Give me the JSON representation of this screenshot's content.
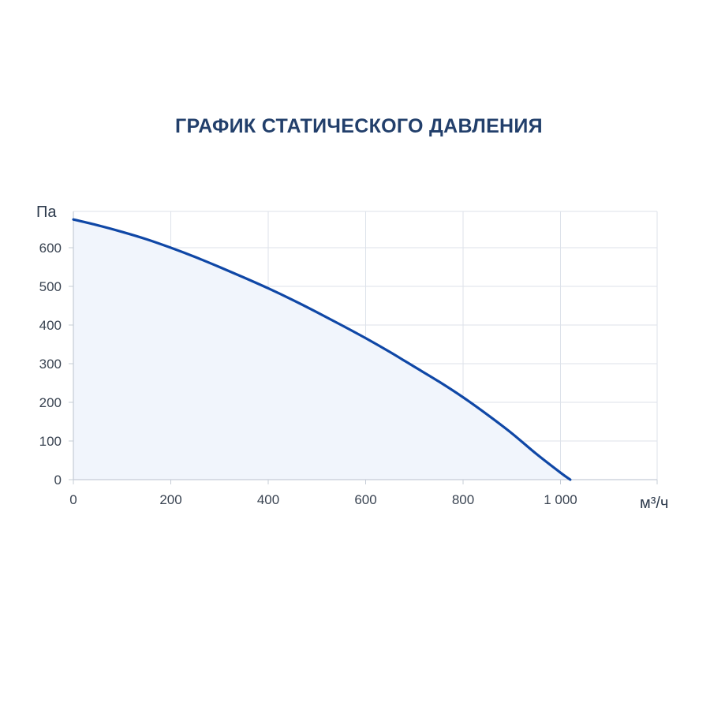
{
  "chart_data": {
    "type": "area",
    "title": "ГРАФИК СТАТИЧЕСКОГО ДАВЛЕНИЯ",
    "xlabel": "м³/ч",
    "ylabel": "Па",
    "xlim": [
      0,
      1200
    ],
    "ylim": [
      0,
      670
    ],
    "x_ticks": [
      0,
      200,
      400,
      600,
      800,
      1000
    ],
    "x_tick_labels": [
      "0",
      "200",
      "400",
      "600",
      "800",
      "1 000"
    ],
    "y_ticks": [
      0,
      100,
      200,
      300,
      400,
      500,
      600
    ],
    "y_tick_labels": [
      "0",
      "100",
      "200",
      "300",
      "400",
      "500",
      "600"
    ],
    "grid": true,
    "series": [
      {
        "color": "#0f47a6",
        "fill": "#f1f5fc",
        "x": [
          0,
          50,
          100,
          150,
          200,
          250,
          300,
          350,
          400,
          450,
          500,
          550,
          600,
          650,
          700,
          750,
          800,
          850,
          900,
          950,
          1000,
          1020
        ],
        "y": [
          673,
          658,
          641,
          622,
          600,
          576,
          550,
          523,
          495,
          465,
          433,
          400,
          366,
          330,
          292,
          254,
          213,
          168,
          120,
          67,
          18,
          0
        ]
      }
    ]
  }
}
